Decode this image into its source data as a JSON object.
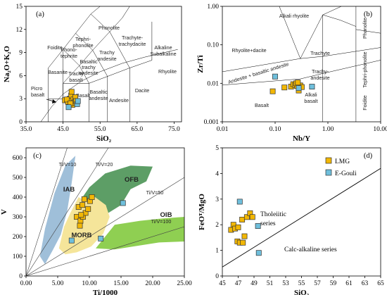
{
  "colors": {
    "lmg": "#f2b705",
    "egouli": "#6fbfdc",
    "iab": "#9fbfd9",
    "ofb": "#5d9e66",
    "oib": "#8fcf52",
    "morb": "#f5e59a"
  },
  "chart_data": [
    {
      "id": "a",
      "type": "scatter",
      "panel_label": "(a)",
      "xlabel": "SiO₂",
      "ylabel": "Na₂O+K₂O",
      "xlim": [
        35,
        77
      ],
      "ylim": [
        0,
        15
      ],
      "xticks": [
        "35.0",
        "45.0",
        "55.0",
        "65.0",
        "75.0"
      ],
      "yticks": [
        "0",
        "3",
        "6",
        "9",
        "12",
        "15"
      ],
      "field_labels": [
        "Foidite",
        "Phonolite",
        "Tephri-phonolite",
        "Phono-tephrite",
        "Trachyte-trachydacite",
        "Trachy andesite",
        "Basaltic trachy andesite",
        "Basanite",
        "Trachy basalt",
        "Picro basalt",
        "Basalt",
        "Basaltic andesite",
        "Andesite",
        "Dacite",
        "Rhyolite",
        "Alkaline",
        "Subalkaline"
      ],
      "series": [
        {
          "name": "LMG",
          "x": [
            45.5,
            46.3,
            46.8,
            47.2,
            47.5,
            47.8,
            48.0,
            48.3,
            46.0,
            47.0,
            48.5,
            47.3
          ],
          "y": [
            2.8,
            2.6,
            3.0,
            3.4,
            2.2,
            2.9,
            2.5,
            3.2,
            2.9,
            2.4,
            2.7,
            3.9
          ]
        },
        {
          "name": "E-Gouli",
          "x": [
            46.5,
            48.8,
            49.0
          ],
          "y": [
            1.9,
            2.3,
            2.7
          ]
        }
      ]
    },
    {
      "id": "b",
      "type": "scatter",
      "panel_label": "(b)",
      "xlabel": "Nb/Y",
      "ylabel": "Zr/Ti",
      "xscale": "log",
      "yscale": "log",
      "xlim": [
        0.01,
        10
      ],
      "ylim": [
        0.001,
        1
      ],
      "xticks": [
        "0.01",
        "0.10",
        "1.00",
        "10.00"
      ],
      "yticks": [
        "0.001",
        "0.01",
        "0.10",
        "1.00"
      ],
      "field_labels": [
        "Alkali rhyolite",
        "Phonolite",
        "Rhyolite+dacite",
        "Trachyte",
        "Trachy-andesite",
        "Tephri-phonolite",
        "Andesite + basaltic andesite",
        "Basalt",
        "Alkali basalt",
        "Foidite"
      ],
      "series": [
        {
          "name": "LMG",
          "x": [
            0.09,
            0.15,
            0.2,
            0.22,
            0.24,
            0.26,
            0.28,
            0.3,
            0.25,
            0.32,
            0.27
          ],
          "y": [
            0.0062,
            0.0078,
            0.0082,
            0.0095,
            0.009,
            0.0085,
            0.0065,
            0.0088,
            0.01,
            0.008,
            0.0105
          ]
        },
        {
          "name": "E-Gouli",
          "x": [
            0.1,
            0.28,
            0.5
          ],
          "y": [
            0.015,
            0.0075,
            0.0082
          ]
        }
      ]
    },
    {
      "id": "c",
      "type": "scatter",
      "panel_label": "(c)",
      "xlabel": "Ti/1000",
      "ylabel": "V",
      "xlim": [
        0,
        25
      ],
      "ylim": [
        0,
        650
      ],
      "xticks": [
        "0.00",
        "5.00",
        "10.00",
        "15.00",
        "20.00",
        "25.00"
      ],
      "yticks": [
        "0",
        "100",
        "200",
        "300",
        "400",
        "500",
        "600"
      ],
      "ratio_lines": [
        "Ti/V=10",
        "Ti/V=20",
        "Ti/V=50",
        "Ti/V=100"
      ],
      "field_labels": [
        "IAB",
        "OFB",
        "MORB",
        "OIB"
      ],
      "series": [
        {
          "name": "LMG",
          "x": [
            8.0,
            8.3,
            8.6,
            9.0,
            9.4,
            9.8,
            10.1,
            10.4,
            8.5,
            9.2,
            8.9,
            8.7
          ],
          "y": [
            300,
            350,
            280,
            300,
            320,
            340,
            380,
            400,
            255,
            390,
            360,
            310
          ]
        },
        {
          "name": "E-Gouli",
          "x": [
            7.2,
            11.8,
            15.3
          ],
          "y": [
            180,
            190,
            370
          ]
        }
      ]
    },
    {
      "id": "d",
      "type": "scatter",
      "panel_label": "(d)",
      "xlabel": "SiO₂",
      "ylabel": "FeOᵀ/MgO",
      "xlim": [
        45,
        65
      ],
      "ylim": [
        0,
        5
      ],
      "xticks": [
        "45",
        "47",
        "49",
        "51",
        "53",
        "55",
        "57",
        "59",
        "61",
        "63",
        "65"
      ],
      "yticks": [
        "0",
        "1",
        "2",
        "3",
        "4",
        "5"
      ],
      "field_labels": [
        "Tholeiitic series",
        "Calc-alkaline series"
      ],
      "legend": [
        "LMG",
        "E-Gouli"
      ],
      "legend_position": "top-right",
      "series": [
        {
          "name": "LMG",
          "x": [
            46.1,
            46.4,
            46.6,
            46.9,
            47.2,
            47.5,
            47.8,
            48.1,
            48.5,
            48.8,
            47.0,
            47.6
          ],
          "y": [
            1.8,
            2.0,
            1.85,
            1.35,
            1.3,
            2.2,
            1.55,
            2.3,
            2.45,
            2.3,
            1.9,
            1.3
          ]
        },
        {
          "name": "E-Gouli",
          "x": [
            47.2,
            49.5,
            49.6
          ],
          "y": [
            2.9,
            1.95,
            0.9
          ]
        }
      ]
    }
  ]
}
